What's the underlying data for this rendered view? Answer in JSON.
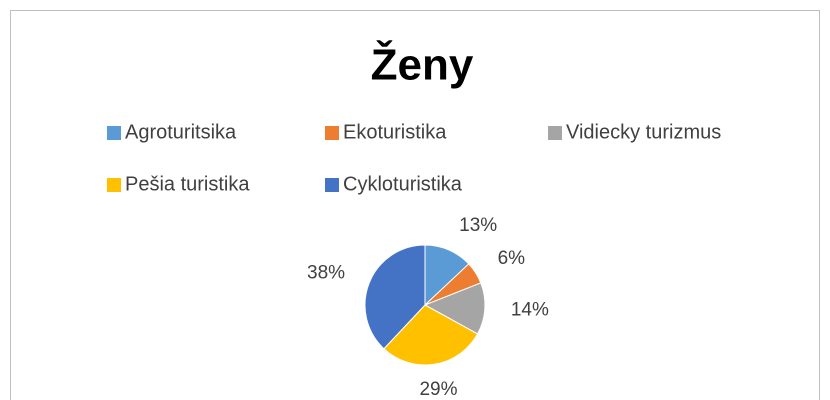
{
  "chart_data": {
    "type": "pie",
    "title": "Ženy",
    "categories": [
      "Agroturitsika",
      "Ekoturistika",
      "Vidiecky turizmus",
      "Pešia turistika",
      "Cykloturistika"
    ],
    "values": [
      13,
      6,
      14,
      29,
      38
    ],
    "value_labels": [
      "13%",
      "6%",
      "14%",
      "29%",
      "38%"
    ],
    "colors": [
      "#5b9bd5",
      "#ed7d31",
      "#a5a5a5",
      "#ffc000",
      "#4472c4"
    ],
    "legend": "top"
  }
}
